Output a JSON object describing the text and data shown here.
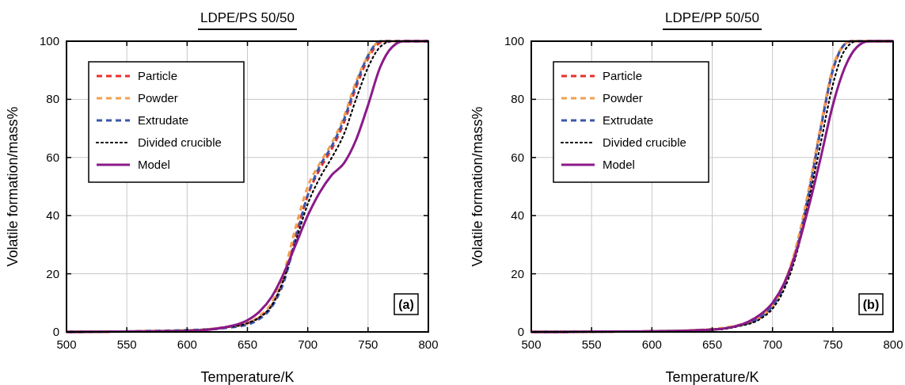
{
  "chart_data": [
    {
      "type": "line",
      "title": "LDPE/PS 50/50",
      "xlabel": "Temperature/K",
      "ylabel": "Volatile formation/mass%",
      "xlim": [
        500,
        800
      ],
      "xticks": [
        500,
        550,
        600,
        650,
        700,
        750,
        800
      ],
      "ylim": [
        0,
        100
      ],
      "yticks": [
        0,
        20,
        40,
        60,
        80,
        100
      ],
      "grid": true,
      "legend": "top left",
      "annotations": [
        "(a)"
      ],
      "series": [
        {
          "name": "Particle",
          "color": "#e8302f",
          "line_style": "dashed",
          "x": [
            500,
            600,
            630,
            650,
            660,
            670,
            680,
            690,
            700,
            710,
            720,
            730,
            740,
            750,
            760,
            765,
            800
          ],
          "values": [
            0,
            0.5,
            1.5,
            3,
            5,
            9,
            18,
            33,
            47,
            56,
            63,
            72,
            84,
            94,
            99.5,
            100,
            100
          ]
        },
        {
          "name": "Powder",
          "color": "#f0a050",
          "line_style": "dashed",
          "x": [
            500,
            600,
            630,
            650,
            660,
            670,
            680,
            690,
            700,
            710,
            720,
            730,
            740,
            750,
            760,
            800
          ],
          "values": [
            0,
            0.5,
            1.5,
            3,
            5.5,
            10,
            20,
            36,
            50,
            58,
            65,
            74,
            86,
            95,
            100,
            100
          ]
        },
        {
          "name": "Extrudate",
          "color": "#3b57a8",
          "line_style": "dashed",
          "x": [
            500,
            600,
            630,
            650,
            660,
            670,
            680,
            690,
            700,
            710,
            720,
            730,
            740,
            750,
            760,
            800
          ],
          "values": [
            0,
            0.6,
            1.3,
            2.5,
            4.5,
            8.5,
            17,
            32,
            47,
            57,
            64,
            73,
            85,
            95,
            100,
            100
          ]
        },
        {
          "name": "Divided crucible",
          "color": "#000000",
          "line_style": "dotted",
          "x": [
            500,
            600,
            630,
            650,
            660,
            670,
            680,
            690,
            700,
            710,
            720,
            730,
            740,
            750,
            760,
            770,
            800
          ],
          "values": [
            0,
            0.4,
            1.5,
            3,
            5,
            9,
            18,
            31,
            44,
            53,
            60,
            68,
            80,
            91,
            98,
            100,
            100
          ]
        },
        {
          "name": "Model",
          "color": "#8b1a89",
          "line_style": "solid",
          "x": [
            500,
            600,
            630,
            650,
            660,
            670,
            680,
            690,
            700,
            710,
            720,
            730,
            740,
            750,
            760,
            770,
            780,
            800
          ],
          "values": [
            0,
            0.3,
            1.5,
            4,
            7,
            12,
            20,
            30,
            40,
            48,
            54,
            58,
            66,
            78,
            91,
            98,
            100,
            100
          ]
        }
      ]
    },
    {
      "type": "line",
      "title": "LDPE/PP 50/50",
      "xlabel": "Temperature/K",
      "ylabel": "Volatile formation/mass%",
      "xlim": [
        500,
        800
      ],
      "xticks": [
        500,
        550,
        600,
        650,
        700,
        750,
        800
      ],
      "ylim": [
        0,
        100
      ],
      "yticks": [
        0,
        20,
        40,
        60,
        80,
        100
      ],
      "grid": true,
      "legend": "top left",
      "annotations": [
        "(b)"
      ],
      "series": [
        {
          "name": "Particle",
          "color": "#e8302f",
          "line_style": "dashed",
          "x": [
            500,
            600,
            650,
            670,
            690,
            700,
            710,
            720,
            730,
            740,
            750,
            760,
            765,
            800
          ],
          "values": [
            0,
            0.2,
            0.8,
            2,
            5,
            9,
            17,
            29,
            48,
            70,
            90,
            99,
            100,
            100
          ]
        },
        {
          "name": "Powder",
          "color": "#f0a050",
          "line_style": "dashed",
          "x": [
            500,
            600,
            650,
            670,
            680,
            690,
            700,
            710,
            720,
            730,
            740,
            750,
            760,
            765,
            800
          ],
          "values": [
            0,
            0.2,
            1,
            2.2,
            3.2,
            5.2,
            9,
            17,
            30,
            49,
            71,
            91,
            99,
            100,
            100
          ]
        },
        {
          "name": "Extrudate",
          "color": "#3b57a8",
          "line_style": "dashed",
          "x": [
            500,
            600,
            650,
            670,
            690,
            700,
            710,
            720,
            730,
            740,
            750,
            760,
            765,
            800
          ],
          "values": [
            0,
            0.2,
            0.8,
            2,
            5,
            9,
            16,
            28,
            47,
            70,
            90,
            99,
            100,
            100
          ]
        },
        {
          "name": "Divided crucible",
          "color": "#000000",
          "line_style": "dotted",
          "x": [
            500,
            600,
            650,
            670,
            690,
            700,
            710,
            720,
            730,
            740,
            750,
            760,
            770,
            800
          ],
          "values": [
            0,
            0.2,
            0.7,
            1.8,
            4.5,
            8,
            15,
            27,
            45,
            65,
            85,
            97,
            100,
            100
          ]
        },
        {
          "name": "Model",
          "color": "#8b1a89",
          "line_style": "solid",
          "x": [
            500,
            600,
            650,
            670,
            680,
            690,
            700,
            710,
            720,
            730,
            740,
            750,
            760,
            770,
            780,
            800
          ],
          "values": [
            0,
            0.2,
            0.8,
            2,
            3.5,
            6,
            10,
            17,
            28,
            43,
            60,
            78,
            91,
            98,
            100,
            100
          ]
        }
      ]
    }
  ]
}
